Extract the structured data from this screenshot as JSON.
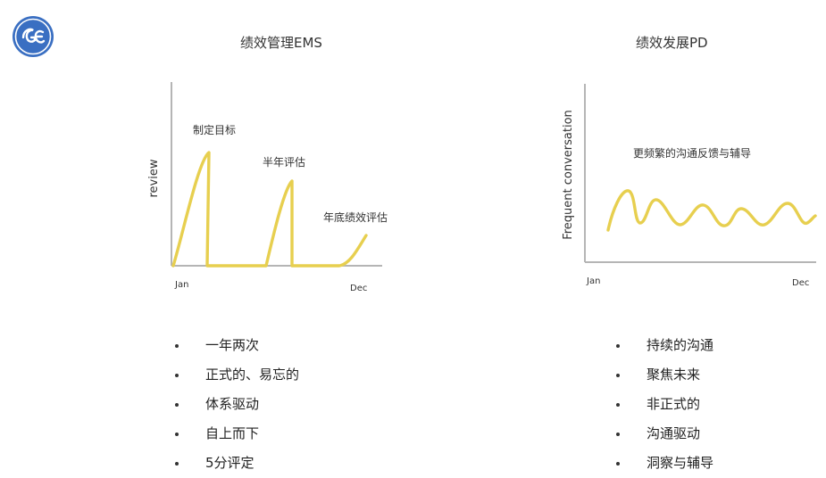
{
  "brand": {
    "logo_icon": "ge-logo-icon",
    "color": "#3a6fc2"
  },
  "accent_color": "#e7cf4f",
  "left": {
    "title": "绩效管理EMS",
    "bullets": [
      "一年两次",
      "正式的、易忘的",
      "体系驱动",
      "自上而下",
      "5分评定"
    ]
  },
  "right": {
    "title": "绩效发展PD",
    "bullets": [
      "持续的沟通",
      "聚焦未来",
      "非正式的",
      "沟通驱动",
      "洞察与辅导"
    ]
  },
  "chart_data": [
    {
      "type": "line",
      "ylabel": "review",
      "xlabel": "",
      "x_ticks": [
        "Jan",
        "Dec"
      ],
      "annotations": [
        "制定目标",
        "半年评估",
        "年底绩效评估"
      ]
    },
    {
      "type": "line",
      "ylabel": "Frequent conversation",
      "xlabel": "",
      "x_ticks": [
        "Jan",
        "Dec"
      ],
      "annotations": [
        "更频繁的沟通反馈与辅导"
      ]
    }
  ]
}
